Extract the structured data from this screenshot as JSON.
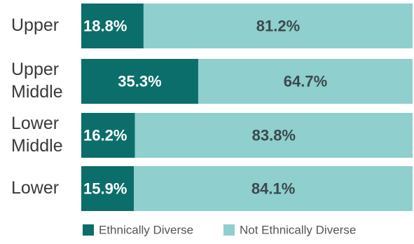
{
  "chart_data": {
    "type": "bar",
    "orientation": "horizontal",
    "stacked": true,
    "percent": true,
    "categories": [
      [
        "Upper"
      ],
      [
        "Upper",
        "Middle"
      ],
      [
        "Lower",
        "Middle"
      ],
      [
        "Lower"
      ]
    ],
    "series": [
      {
        "name": "Ethnically Diverse",
        "values": [
          18.8,
          35.3,
          16.2,
          15.9
        ],
        "labels": [
          "18.8%",
          "35.3%",
          "16.2%",
          "15.9%"
        ]
      },
      {
        "name": "Not Ethnically Diverse",
        "values": [
          81.2,
          64.7,
          83.8,
          84.1
        ],
        "labels": [
          "81.2%",
          "64.7%",
          "83.8%",
          "84.1%"
        ]
      }
    ],
    "xlim": [
      0,
      100
    ],
    "grid": false,
    "legend_position": "bottom",
    "colors": {
      "Ethnically Diverse": "#0b6e6a",
      "Not Ethnically Diverse": "#8fcfce",
      "label_on_dark": "#ffffff",
      "label_on_light": "#3b4a4c",
      "category_text": "#3a3a3a"
    }
  }
}
